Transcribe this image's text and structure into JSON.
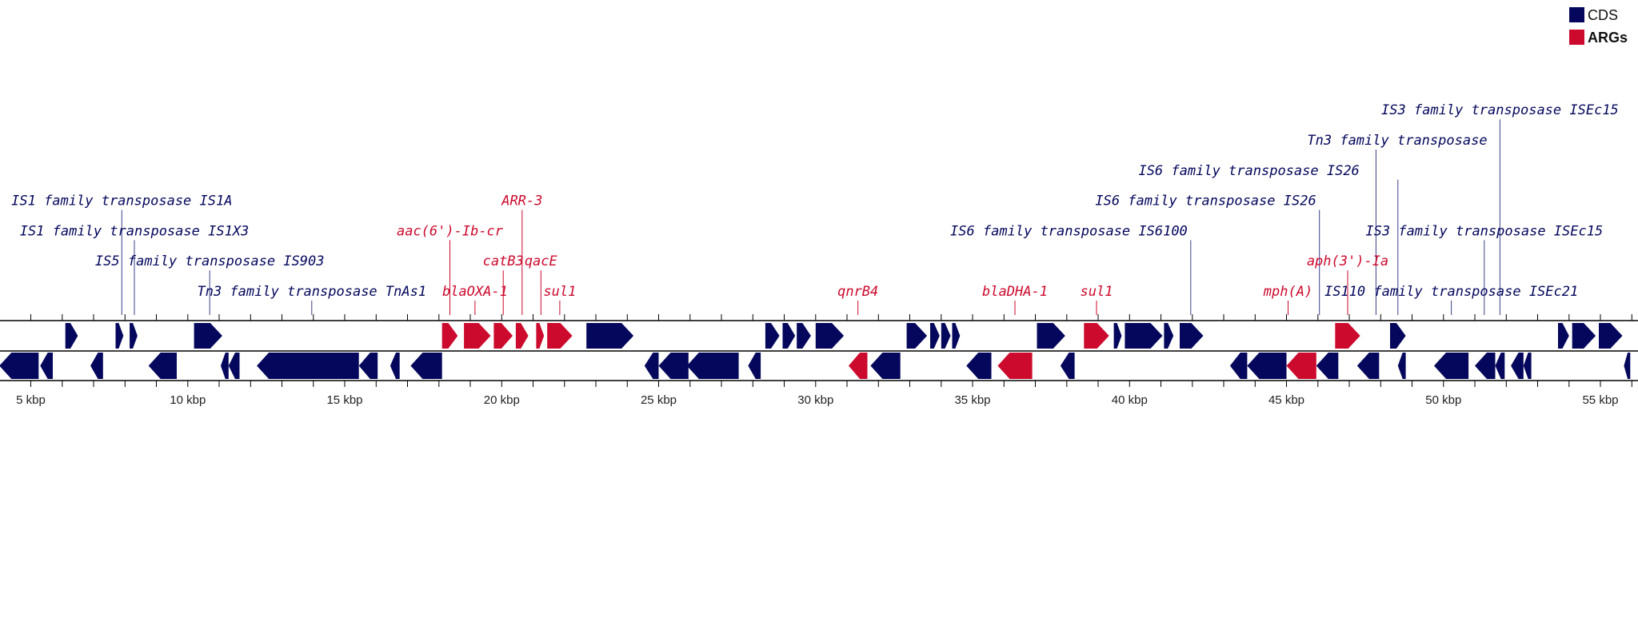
{
  "colors": {
    "cds": "#04075c",
    "arg": "#cc0a2d",
    "axis": "#000000",
    "leader_cds": "#3a3f8a",
    "leader_arg": "#cc0a2d"
  },
  "legend": [
    {
      "label": "CDS",
      "color": "#04075c",
      "bold": false
    },
    {
      "label": "ARGs",
      "color": "#cc0a2d",
      "bold": true
    }
  ],
  "axis": {
    "start_bp": 4000,
    "end_bp": 56200,
    "tick_labels": [
      "5 kbp",
      "10 kbp",
      "15 kbp",
      "20 kbp",
      "25 kbp",
      "30 kbp",
      "35 kbp",
      "40 kbp",
      "45 kbp",
      "50 kbp",
      "55 kbp"
    ],
    "tick_values_bp": [
      5000,
      10000,
      15000,
      20000,
      25000,
      30000,
      35000,
      40000,
      45000,
      50000,
      55000
    ]
  },
  "features": [
    {
      "s": 6100,
      "e": 6500,
      "st": 1,
      "t": "cds"
    },
    {
      "s": 7700,
      "e": 7950,
      "st": 1,
      "t": "cds"
    },
    {
      "s": 8150,
      "e": 8400,
      "st": 1,
      "t": "cds"
    },
    {
      "s": 10200,
      "e": 11100,
      "st": 1,
      "t": "cds"
    },
    {
      "s": 18100,
      "e": 18600,
      "st": 1,
      "t": "arg"
    },
    {
      "s": 18800,
      "e": 19650,
      "st": 1,
      "t": "arg"
    },
    {
      "s": 19750,
      "e": 20350,
      "st": 1,
      "t": "arg"
    },
    {
      "s": 20450,
      "e": 20850,
      "st": 1,
      "t": "arg"
    },
    {
      "s": 21100,
      "e": 21350,
      "st": 1,
      "t": "arg"
    },
    {
      "s": 21450,
      "e": 22250,
      "st": 1,
      "t": "arg"
    },
    {
      "s": 22700,
      "e": 24200,
      "st": 1,
      "t": "cds"
    },
    {
      "s": 28400,
      "e": 28850,
      "st": 1,
      "t": "cds"
    },
    {
      "s": 28950,
      "e": 29350,
      "st": 1,
      "t": "cds"
    },
    {
      "s": 29400,
      "e": 29850,
      "st": 1,
      "t": "cds"
    },
    {
      "s": 30000,
      "e": 30900,
      "st": 1,
      "t": "cds"
    },
    {
      "s": 32900,
      "e": 33550,
      "st": 1,
      "t": "cds"
    },
    {
      "s": 33650,
      "e": 33950,
      "st": 1,
      "t": "cds"
    },
    {
      "s": 34000,
      "e": 34300,
      "st": 1,
      "t": "cds"
    },
    {
      "s": 34350,
      "e": 34600,
      "st": 1,
      "t": "cds"
    },
    {
      "s": 37050,
      "e": 37950,
      "st": 1,
      "t": "cds"
    },
    {
      "s": 38550,
      "e": 39350,
      "st": 1,
      "t": "arg"
    },
    {
      "s": 39500,
      "e": 39750,
      "st": 1,
      "t": "cds"
    },
    {
      "s": 39850,
      "e": 41050,
      "st": 1,
      "t": "cds"
    },
    {
      "s": 41100,
      "e": 41400,
      "st": 1,
      "t": "cds"
    },
    {
      "s": 41600,
      "e": 42350,
      "st": 1,
      "t": "cds"
    },
    {
      "s": 46550,
      "e": 47350,
      "st": 1,
      "t": "arg"
    },
    {
      "s": 48300,
      "e": 48800,
      "st": 1,
      "t": "cds"
    },
    {
      "s": 53650,
      "e": 54000,
      "st": 1,
      "t": "cds"
    },
    {
      "s": 54100,
      "e": 54850,
      "st": 1,
      "t": "cds"
    },
    {
      "s": 54950,
      "e": 55700,
      "st": 1,
      "t": "cds"
    },
    {
      "s": 4000,
      "e": 5250,
      "st": -1,
      "t": "cds"
    },
    {
      "s": 5300,
      "e": 5700,
      "st": -1,
      "t": "cds"
    },
    {
      "s": 6900,
      "e": 7300,
      "st": -1,
      "t": "cds"
    },
    {
      "s": 8750,
      "e": 9650,
      "st": -1,
      "t": "cds"
    },
    {
      "s": 11050,
      "e": 11300,
      "st": -1,
      "t": "cds"
    },
    {
      "s": 11300,
      "e": 11650,
      "st": -1,
      "t": "cds"
    },
    {
      "s": 12200,
      "e": 15450,
      "st": -1,
      "t": "cds"
    },
    {
      "s": 15450,
      "e": 16050,
      "st": -1,
      "t": "cds"
    },
    {
      "s": 16450,
      "e": 16750,
      "st": -1,
      "t": "cds"
    },
    {
      "s": 17100,
      "e": 18100,
      "st": -1,
      "t": "cds"
    },
    {
      "s": 24550,
      "e": 25000,
      "st": -1,
      "t": "cds"
    },
    {
      "s": 25000,
      "e": 25950,
      "st": -1,
      "t": "cds"
    },
    {
      "s": 25900,
      "e": 27550,
      "st": -1,
      "t": "cds"
    },
    {
      "s": 27850,
      "e": 28250,
      "st": -1,
      "t": "cds"
    },
    {
      "s": 31050,
      "e": 31650,
      "st": -1,
      "t": "arg"
    },
    {
      "s": 31750,
      "e": 32700,
      "st": -1,
      "t": "cds"
    },
    {
      "s": 34800,
      "e": 35600,
      "st": -1,
      "t": "cds"
    },
    {
      "s": 35800,
      "e": 36900,
      "st": -1,
      "t": "arg"
    },
    {
      "s": 37800,
      "e": 38250,
      "st": -1,
      "t": "cds"
    },
    {
      "s": 43200,
      "e": 43750,
      "st": -1,
      "t": "cds"
    },
    {
      "s": 43750,
      "e": 45000,
      "st": -1,
      "t": "cds"
    },
    {
      "s": 45000,
      "e": 45950,
      "st": -1,
      "t": "arg"
    },
    {
      "s": 45950,
      "e": 46650,
      "st": -1,
      "t": "cds"
    },
    {
      "s": 47250,
      "e": 47950,
      "st": -1,
      "t": "cds"
    },
    {
      "s": 48550,
      "e": 48800,
      "st": -1,
      "t": "cds"
    },
    {
      "s": 49700,
      "e": 50800,
      "st": -1,
      "t": "cds"
    },
    {
      "s": 51000,
      "e": 51650,
      "st": -1,
      "t": "cds"
    },
    {
      "s": 51650,
      "e": 51950,
      "st": -1,
      "t": "cds"
    },
    {
      "s": 52150,
      "e": 52550,
      "st": -1,
      "t": "cds"
    },
    {
      "s": 52550,
      "e": 52800,
      "st": -1,
      "t": "cds"
    },
    {
      "s": 55750,
      "e": 55950,
      "st": -1,
      "t": "cds"
    }
  ],
  "labels": [
    {
      "text": "IS1 family transposase IS1A",
      "pos": 7900,
      "row": 4,
      "t": "cds",
      "anchor": "middle"
    },
    {
      "text": "IS1 family transposase IS1X3",
      "pos": 8300,
      "row": 3,
      "t": "cds",
      "anchor": "middle"
    },
    {
      "text": "IS5 family transposase IS903",
      "pos": 10700,
      "row": 2,
      "t": "cds",
      "anchor": "middle"
    },
    {
      "text": "Tn3 family transposase TnAs1",
      "pos": 13950,
      "row": 1,
      "t": "cds",
      "anchor": "middle"
    },
    {
      "text": "aac(6')-Ib-cr",
      "pos": 18350,
      "row": 3,
      "t": "arg",
      "anchor": "middle"
    },
    {
      "text": "blaOXA-1",
      "pos": 19150,
      "row": 1,
      "t": "arg",
      "anchor": "middle"
    },
    {
      "text": "ARR-3",
      "pos": 20650,
      "row": 4,
      "t": "arg",
      "anchor": "middle"
    },
    {
      "text": "catB3",
      "pos": 20050,
      "row": 2,
      "t": "arg",
      "anchor": "middle"
    },
    {
      "text": "qacE",
      "pos": 21250,
      "row": 2,
      "t": "arg",
      "anchor": "middle"
    },
    {
      "text": "sul1",
      "pos": 21850,
      "row": 1,
      "t": "arg",
      "anchor": "middle"
    },
    {
      "text": "qnrB4",
      "pos": 31350,
      "row": 1,
      "t": "arg",
      "anchor": "middle"
    },
    {
      "text": "blaDHA-1",
      "pos": 36350,
      "row": 1,
      "t": "arg",
      "anchor": "middle"
    },
    {
      "text": "sul1",
      "pos": 38950,
      "row": 1,
      "t": "arg",
      "anchor": "middle"
    },
    {
      "text": "IS6 family transposase IS6100",
      "pos": 41950,
      "row": 3,
      "t": "cds",
      "anchor": "end",
      "dx": -4
    },
    {
      "text": "IS6 family transposase IS26",
      "pos": 46050,
      "row": 4,
      "t": "cds",
      "anchor": "end",
      "dx": -4
    },
    {
      "text": "mph(A)",
      "pos": 45050,
      "row": 1,
      "t": "arg",
      "anchor": "middle"
    },
    {
      "text": "aph(3')-Ia",
      "pos": 46950,
      "row": 2,
      "t": "arg",
      "anchor": "middle"
    },
    {
      "text": "IS6 family transposase IS26",
      "pos": 48550,
      "row": 5,
      "t": "cds",
      "anchor": "end",
      "dx": -48
    },
    {
      "text": "Tn3 family transposase",
      "pos": 47850,
      "row": 6,
      "t": "cds",
      "anchor": "start",
      "dx": -86
    },
    {
      "text": "IS110 family transposase ISEc21",
      "pos": 50250,
      "row": 1,
      "t": "cds",
      "anchor": "middle"
    },
    {
      "text": "IS3 family transposase ISEc15",
      "pos": 51300,
      "row": 3,
      "t": "cds",
      "anchor": "middle"
    },
    {
      "text": "IS3 family transposase ISEc15",
      "pos": 51800,
      "row": 7,
      "t": "cds",
      "anchor": "middle"
    }
  ]
}
